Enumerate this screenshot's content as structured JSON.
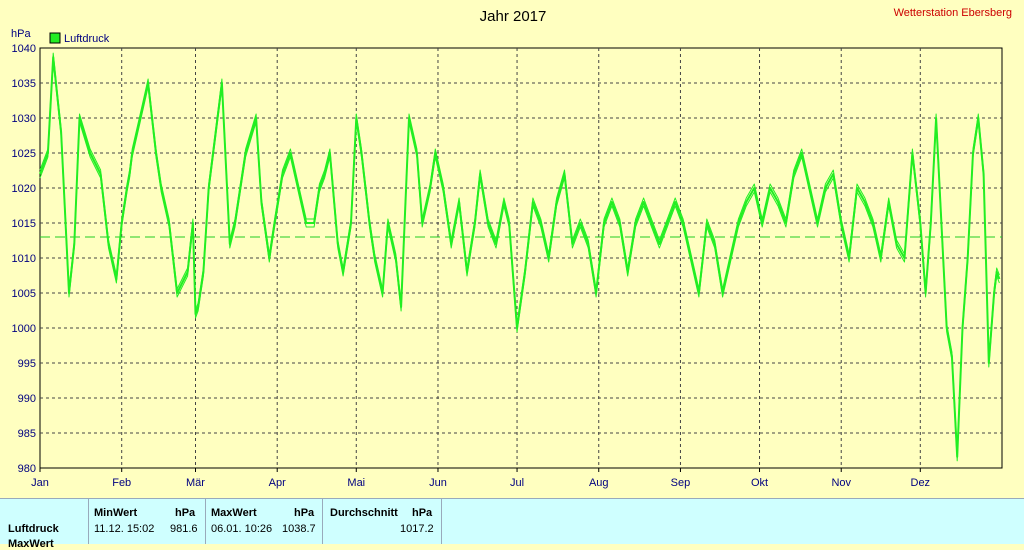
{
  "header": {
    "title": "Jahr 2017",
    "station": "Wetterstation Ebersberg"
  },
  "colors": {
    "background": "#FFFFC0",
    "plot_background": "#FFFFC0",
    "series": "#22EE22",
    "station_text": "#CC0000",
    "stats_background": "#CFFFFF"
  },
  "chart_data": {
    "type": "line",
    "title": "Jahr 2017",
    "ylabel": "hPa",
    "xlabel": "",
    "ylim": [
      980,
      1040
    ],
    "yticks": [
      980,
      985,
      990,
      995,
      1000,
      1005,
      1010,
      1015,
      1020,
      1025,
      1030,
      1035,
      1040
    ],
    "xlim": [
      1,
      366
    ],
    "x_tick_labels": [
      "Jan",
      "Feb",
      "Mär",
      "Apr",
      "Mai",
      "Jun",
      "Jul",
      "Aug",
      "Sep",
      "Okt",
      "Nov",
      "Dez"
    ],
    "x_tick_days": [
      1,
      32,
      60,
      91,
      121,
      152,
      182,
      213,
      244,
      274,
      305,
      335
    ],
    "grid": true,
    "legend": {
      "position": "top-left",
      "entries": [
        "Luftdruck"
      ]
    },
    "mean_line": 1013,
    "series": [
      {
        "name": "Luftdruck",
        "x": [
          1,
          4,
          6,
          9,
          12,
          14,
          16,
          20,
          24,
          27,
          30,
          32,
          34,
          35,
          36,
          39,
          42,
          45,
          47,
          50,
          53,
          57,
          59,
          60,
          61,
          63,
          65,
          67,
          70,
          73,
          75,
          79,
          83,
          85,
          88,
          90,
          93,
          96,
          99,
          102,
          105,
          107,
          109,
          111,
          114,
          116,
          119,
          121,
          123,
          126,
          128,
          131,
          133,
          136,
          138,
          141,
          144,
          146,
          149,
          151,
          154,
          157,
          160,
          163,
          166,
          168,
          171,
          174,
          177,
          179,
          182,
          185,
          188,
          191,
          194,
          197,
          200,
          203,
          206,
          209,
          212,
          215,
          218,
          221,
          224,
          227,
          230,
          233,
          236,
          239,
          242,
          245,
          248,
          251,
          254,
          257,
          260,
          263,
          266,
          269,
          272,
          275,
          278,
          281,
          284,
          287,
          290,
          293,
          296,
          299,
          302,
          305,
          308,
          311,
          314,
          317,
          320,
          323,
          326,
          329,
          332,
          335,
          337,
          339,
          341,
          343,
          345,
          347,
          349,
          351,
          353,
          355,
          357,
          359,
          361,
          363,
          364,
          365
        ],
        "y": [
          1022,
          1025,
          1038.7,
          1028,
          1005,
          1012,
          1030,
          1025,
          1022,
          1012,
          1007,
          1015,
          1020,
          1022,
          1025,
          1030,
          1035,
          1025,
          1020,
          1015,
          1005,
          1008,
          1015,
          1002,
          1003,
          1008,
          1020,
          1026,
          1035,
          1012,
          1015,
          1025,
          1030,
          1018,
          1010,
          1015,
          1022,
          1025,
          1020,
          1015,
          1015,
          1020,
          1022,
          1025,
          1012,
          1008,
          1015,
          1030,
          1025,
          1015,
          1010,
          1005,
          1015,
          1010,
          1003,
          1030,
          1025,
          1015,
          1020,
          1025,
          1020,
          1012,
          1018,
          1008,
          1015,
          1022,
          1015,
          1012,
          1018,
          1015,
          1000,
          1008,
          1018,
          1015,
          1010,
          1018,
          1022,
          1012,
          1015,
          1012,
          1005,
          1015,
          1018,
          1015,
          1008,
          1015,
          1018,
          1015,
          1012,
          1015,
          1018,
          1015,
          1010,
          1005,
          1015,
          1012,
          1005,
          1010,
          1015,
          1018,
          1020,
          1015,
          1020,
          1018,
          1015,
          1022,
          1025,
          1020,
          1015,
          1020,
          1022,
          1015,
          1010,
          1020,
          1018,
          1015,
          1010,
          1018,
          1012,
          1010,
          1025,
          1015,
          1005,
          1015,
          1030,
          1015,
          1000,
          996,
          981.6,
          1000,
          1010,
          1025,
          1030,
          1022,
          995,
          1005,
          1008,
          1007
        ]
      }
    ]
  },
  "stats": {
    "row_labels": [
      "Luftdruck",
      "MaxWert"
    ],
    "min": {
      "header": "MinWert",
      "unit": "hPa",
      "time": "11.12.  15:02",
      "value": "981.6"
    },
    "max": {
      "header": "MaxWert",
      "unit": "hPa",
      "time": "06.01.  10:26",
      "value": "1038.7"
    },
    "avg": {
      "header": "Durchschnitt",
      "unit": "hPa",
      "value": "1017.2"
    }
  }
}
